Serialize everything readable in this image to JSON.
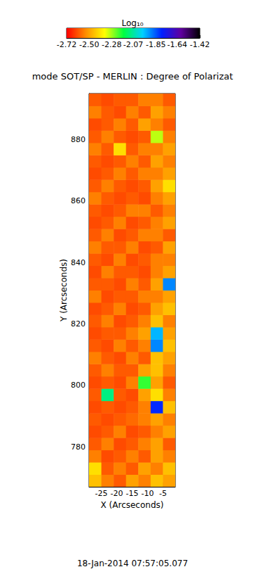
{
  "chart_data": {
    "type": "heatmap",
    "title": "mode SOT/SP - MERLIN : Degree of Polarizat",
    "x_label": "X (Arcseconds)",
    "y_label": "Y (Arcseconds)",
    "annotations": [
      "18-Jan-2014 07:57:05.077"
    ],
    "xlim": [
      -29,
      -1
    ],
    "ylim": [
      767,
      895
    ],
    "xticks": [
      -25,
      -20,
      -15,
      -10,
      -5
    ],
    "yticks": [
      780,
      800,
      820,
      840,
      860,
      880
    ],
    "grid": false,
    "x": [
      -27,
      -23,
      -19,
      -15,
      -11,
      -7,
      -3
    ],
    "y": [
      769,
      773,
      777,
      781,
      785,
      789,
      793,
      797,
      801,
      805,
      809,
      813,
      817,
      821,
      825,
      829,
      833,
      837,
      841,
      845,
      849,
      853,
      857,
      861,
      865,
      869,
      873,
      877,
      881,
      885,
      889,
      893
    ],
    "values": [
      [
        -2.45,
        -2.55,
        -2.6,
        -2.5,
        -2.55,
        -2.45,
        -2.5
      ],
      [
        -2.4,
        -2.6,
        -2.55,
        -2.6,
        -2.5,
        -2.55,
        -2.45
      ],
      [
        -2.55,
        -2.62,
        -2.6,
        -2.55,
        -2.6,
        -2.5,
        -2.55
      ],
      [
        -2.6,
        -2.55,
        -2.62,
        -2.6,
        -2.55,
        -2.5,
        -2.6
      ],
      [
        -2.62,
        -2.6,
        -2.55,
        -2.62,
        -2.6,
        -2.55,
        -2.5
      ],
      [
        -2.6,
        -2.62,
        -2.6,
        -2.58,
        -2.55,
        -2.5,
        -2.55
      ],
      [
        -2.62,
        -2.6,
        -2.62,
        -2.6,
        -2.55,
        -1.8,
        -2.45
      ],
      [
        -2.6,
        -2.1,
        -2.6,
        -2.62,
        -2.5,
        -2.4,
        -2.55
      ],
      [
        -2.62,
        -2.6,
        -2.62,
        -2.55,
        -2.2,
        -2.5,
        -2.6
      ],
      [
        -2.6,
        -2.55,
        -2.6,
        -2.6,
        -2.5,
        -2.45,
        -2.55
      ],
      [
        -2.55,
        -2.6,
        -2.62,
        -2.55,
        -2.6,
        -2.45,
        -2.5
      ],
      [
        -2.6,
        -2.62,
        -2.55,
        -2.6,
        -2.55,
        -1.9,
        -2.45
      ],
      [
        -2.62,
        -2.6,
        -2.6,
        -2.55,
        -2.5,
        -1.95,
        -2.5
      ],
      [
        -2.6,
        -2.55,
        -2.62,
        -2.6,
        -2.55,
        -2.45,
        -2.55
      ],
      [
        -2.62,
        -2.6,
        -2.55,
        -2.62,
        -2.6,
        -2.5,
        -2.45
      ],
      [
        -2.55,
        -2.62,
        -2.6,
        -2.6,
        -2.55,
        -2.55,
        -2.5
      ],
      [
        -2.6,
        -2.6,
        -2.62,
        -2.55,
        -2.6,
        -2.5,
        -1.9
      ],
      [
        -2.62,
        -2.55,
        -2.6,
        -2.6,
        -2.62,
        -2.55,
        -2.5
      ],
      [
        -2.6,
        -2.62,
        -2.55,
        -2.62,
        -2.6,
        -2.55,
        -2.55
      ],
      [
        -2.55,
        -2.6,
        -2.6,
        -2.55,
        -2.62,
        -2.6,
        -2.5
      ],
      [
        -2.6,
        -2.55,
        -2.62,
        -2.6,
        -2.55,
        -2.55,
        -2.6
      ],
      [
        -2.62,
        -2.6,
        -2.55,
        -2.62,
        -2.6,
        -2.55,
        -2.5
      ],
      [
        -2.6,
        -2.62,
        -2.6,
        -2.55,
        -2.55,
        -2.6,
        -2.55
      ],
      [
        -2.55,
        -2.6,
        -2.62,
        -2.6,
        -2.62,
        -2.55,
        -2.5
      ],
      [
        -2.6,
        -2.55,
        -2.6,
        -2.62,
        -2.6,
        -2.5,
        -2.4
      ],
      [
        -2.62,
        -2.6,
        -2.55,
        -2.6,
        -2.55,
        -2.55,
        -2.5
      ],
      [
        -2.6,
        -2.62,
        -2.6,
        -2.55,
        -2.6,
        -2.5,
        -2.55
      ],
      [
        -2.55,
        -2.6,
        -2.4,
        -2.6,
        -2.55,
        -2.55,
        -2.5
      ],
      [
        -2.6,
        -2.55,
        -2.6,
        -2.62,
        -2.6,
        -2.3,
        -2.55
      ],
      [
        -2.62,
        -2.6,
        -2.55,
        -2.6,
        -2.5,
        -2.55,
        -2.6
      ],
      [
        -2.55,
        -2.6,
        -2.62,
        -2.55,
        -2.6,
        -2.5,
        -2.55
      ],
      [
        -2.6,
        -2.62,
        -2.6,
        -2.6,
        -2.55,
        -2.55,
        -2.6
      ]
    ],
    "colorbar": {
      "title": "Log₁₀",
      "range": [
        -2.72,
        -1.42
      ],
      "ticks": [
        -2.72,
        {
          "value": -2.5,
          "label": "-2.50"
        },
        -2.28,
        -2.07,
        -1.85,
        -1.64,
        -1.42
      ],
      "colors": [
        "#ff0000",
        "#ff8c00",
        "#ffff00",
        "#00ff40",
        "#00d0ff",
        "#0020ff",
        "#6000a0",
        "#000000"
      ]
    }
  }
}
